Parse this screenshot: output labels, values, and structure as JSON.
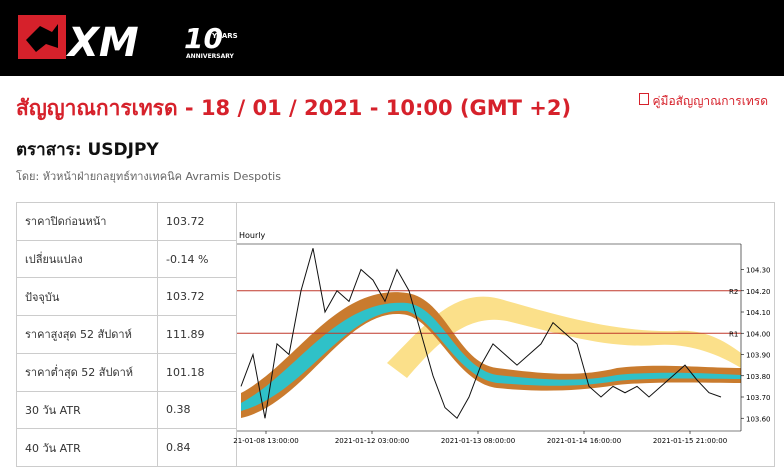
{
  "header": {
    "logo": {
      "mark": "XM",
      "number": "10",
      "years": "YEARS",
      "anniversary": "ANNIVERSARY"
    }
  },
  "title": "สัญญาณการเทรด - 18 / 01 / 2021 - 10:00 (GMT +2)",
  "guide_link": "คู่มือสัญญาณการเทรด",
  "instrument": "ตราสาร: USDJPY",
  "author": "โดย: หัวหน้าฝ่ายกลยุทธ์ทางเทคนิค Avramis Despotis",
  "table": {
    "rows": [
      [
        "ราคาปิดก่อนหน้า",
        "103.72"
      ],
      [
        "เปลี่ยนแปลง",
        "-0.14 %"
      ],
      [
        "ปัจจุบัน",
        "103.72"
      ],
      [
        "ราคาสูงสุด 52 สัปดาห์",
        "111.89"
      ],
      [
        "ราคาต่ำสุด 52 สัปดาห์",
        "101.18"
      ],
      [
        "30 วัน ATR",
        "0.38"
      ],
      [
        "40 วัน ATR",
        "0.84"
      ]
    ]
  },
  "chart_data": {
    "type": "line",
    "title": "Hourly",
    "ylim": [
      103.54,
      104.42
    ],
    "yticks": [
      {
        "value": 103.6,
        "label": "103.60"
      },
      {
        "value": 103.7,
        "label": "103.70"
      },
      {
        "value": 103.8,
        "label": "103.80"
      },
      {
        "value": 103.9,
        "label": "103.90"
      },
      {
        "value": 104.0,
        "label": "104.00"
      },
      {
        "value": 104.1,
        "label": "104.10"
      },
      {
        "value": 104.2,
        "label": "104.20"
      },
      {
        "value": 104.3,
        "label": "104.30"
      }
    ],
    "xticks": [
      "21-01-08 13:00:00",
      "2021-01-12 03:00:00",
      "2021-01-13 08:00:00",
      "2021-01-14 16:00:00",
      "2021-01-15 21:00:00"
    ],
    "levels": [
      {
        "name": "R1",
        "value": 104.0,
        "color": "#c0392b"
      },
      {
        "name": "R2",
        "value": 104.2,
        "color": "#c0392b"
      }
    ],
    "series": [
      {
        "name": "USDJPY",
        "color": "#111111",
        "values": [
          103.75,
          103.9,
          103.6,
          103.95,
          103.9,
          104.2,
          104.4,
          104.1,
          104.2,
          104.15,
          104.3,
          104.25,
          104.15,
          104.3,
          104.2,
          104.0,
          103.8,
          103.65,
          103.6,
          103.7,
          103.85,
          103.95,
          103.9,
          103.85,
          103.9,
          103.95,
          104.05,
          104.0,
          103.95,
          103.75,
          103.7,
          103.75,
          103.72,
          103.75,
          103.7,
          103.75,
          103.8,
          103.85,
          103.78,
          103.72,
          103.7
        ]
      }
    ]
  }
}
